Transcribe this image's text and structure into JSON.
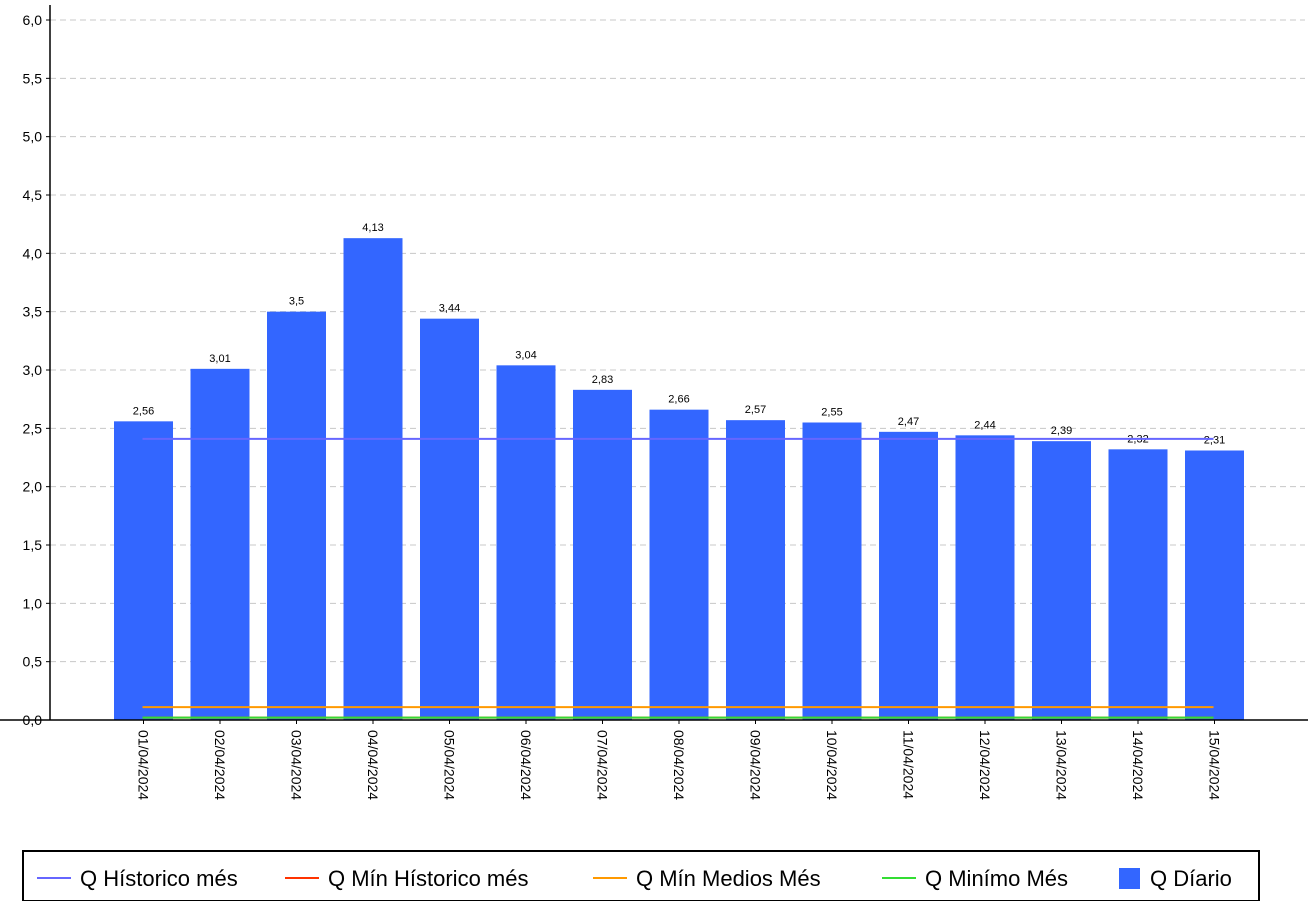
{
  "chart_data": {
    "type": "bar",
    "categories": [
      "01/04/2024",
      "02/04/2024",
      "03/04/2024",
      "04/04/2024",
      "05/04/2024",
      "06/04/2024",
      "07/04/2024",
      "08/04/2024",
      "09/04/2024",
      "10/04/2024",
      "11/04/2024",
      "12/04/2024",
      "13/04/2024",
      "14/04/2024",
      "15/04/2024"
    ],
    "series": [
      {
        "name": "Q Díario",
        "kind": "bar",
        "color": "#3366ff",
        "values": [
          2.56,
          3.01,
          3.5,
          4.13,
          3.44,
          3.04,
          2.83,
          2.66,
          2.57,
          2.55,
          2.47,
          2.44,
          2.39,
          2.32,
          2.31
        ],
        "value_labels": [
          "2,56",
          "3,01",
          "3,5",
          "4,13",
          "3,44",
          "3,04",
          "2,83",
          "2,66",
          "2,57",
          "2,55",
          "2,47",
          "2,44",
          "2,39",
          "2,32",
          "2,31"
        ]
      },
      {
        "name": "Q Hístorico més",
        "kind": "line",
        "color": "#6666ff",
        "value": 2.41
      },
      {
        "name": "Q Mín Hístorico més",
        "kind": "line",
        "color": "#ff3300",
        "value": 0.02
      },
      {
        "name": "Q Mín Medios Més",
        "kind": "line",
        "color": "#ff9900",
        "value": 0.11
      },
      {
        "name": "Q Minímo Més",
        "kind": "line",
        "color": "#33dd33",
        "value": 0.02
      }
    ],
    "ylim": [
      0,
      6.0
    ],
    "yticks": [
      "0,0",
      "0,5",
      "1,0",
      "1,5",
      "2,0",
      "2,5",
      "3,0",
      "3,5",
      "4,0",
      "4,5",
      "5,0",
      "5,5",
      "6,0"
    ],
    "xlabel": "",
    "ylabel": "",
    "grid": true,
    "legend": {
      "position": "bottom",
      "entries": [
        {
          "label": "Q Hístorico més",
          "symbol": "line",
          "color": "#6666ff"
        },
        {
          "label": "Q Mín Hístorico més",
          "symbol": "line",
          "color": "#ff3300"
        },
        {
          "label": "Q Mín Medios Més",
          "symbol": "line",
          "color": "#ff9900"
        },
        {
          "label": "Q Minímo Més",
          "symbol": "line",
          "color": "#33dd33"
        },
        {
          "label": "Q Díario",
          "symbol": "square",
          "color": "#3366ff"
        }
      ]
    }
  }
}
